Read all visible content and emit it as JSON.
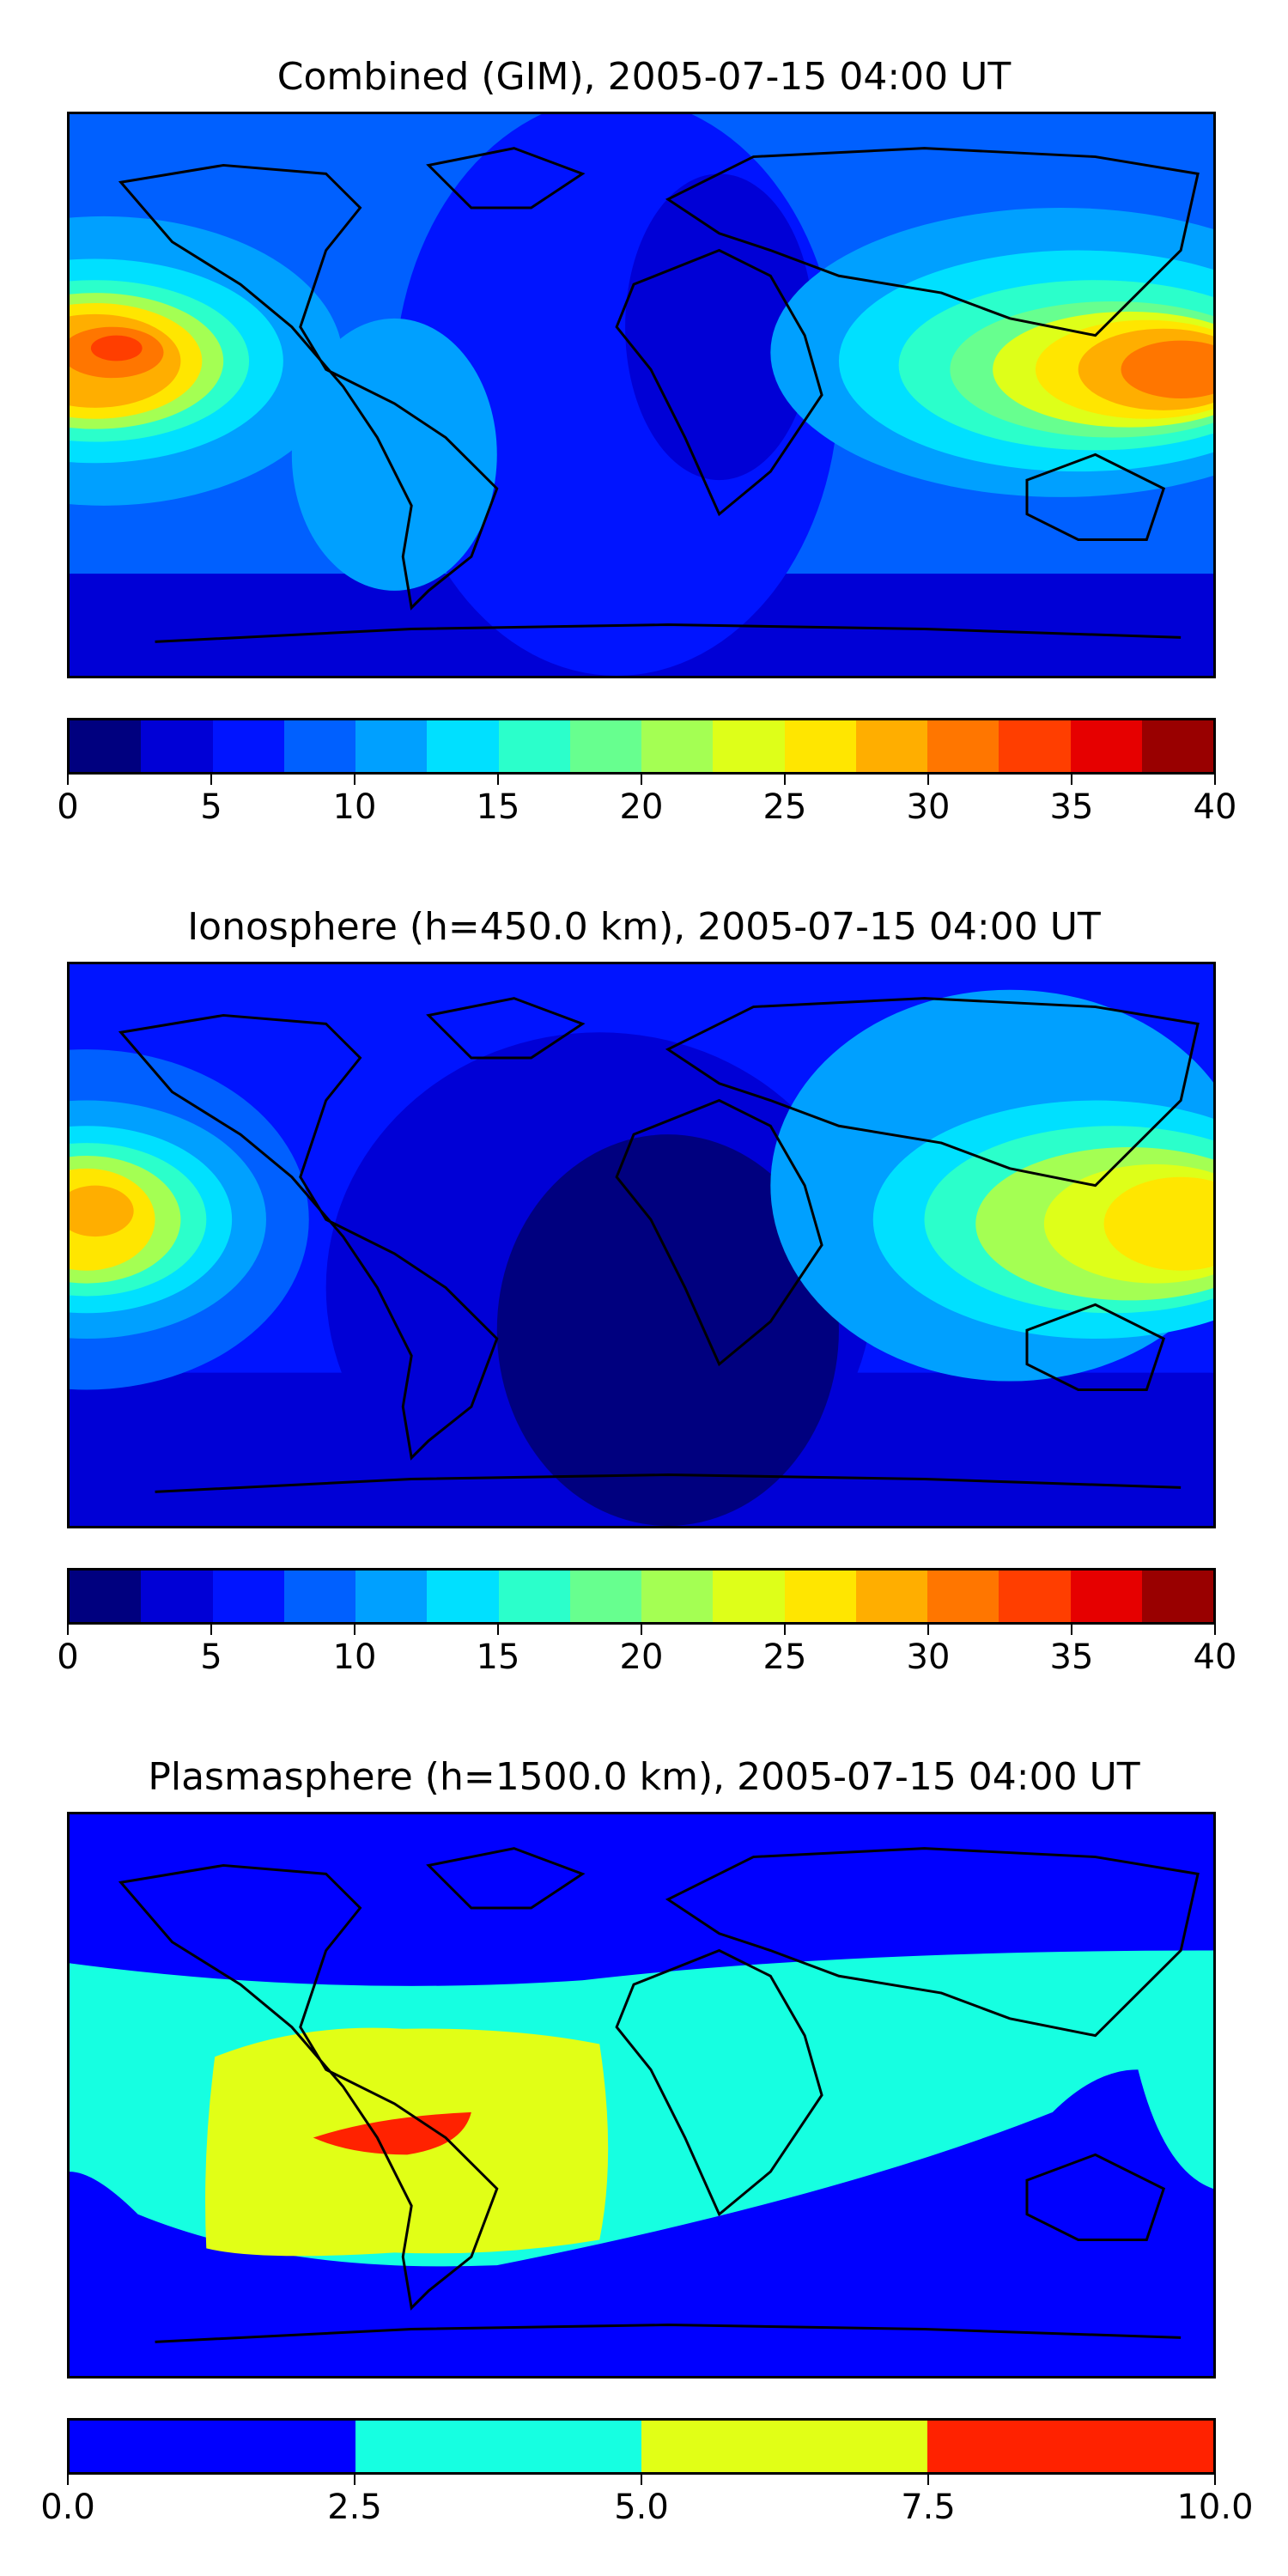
{
  "panels": [
    {
      "title": "Combined (GIM), 2005-07-15 04:00 UT",
      "colorbar": {
        "colors": [
          "#00007f",
          "#0000d6",
          "#0014ff",
          "#0060ff",
          "#00a0ff",
          "#00e0ff",
          "#2bffcb",
          "#67ff8f",
          "#a4ff53",
          "#deff19",
          "#ffe600",
          "#ffae00",
          "#ff7600",
          "#ff3e00",
          "#e60000",
          "#990000"
        ],
        "ticks": [
          "0",
          "5",
          "10",
          "15",
          "20",
          "25",
          "30",
          "35",
          "40"
        ],
        "min": 0,
        "max": 40
      }
    },
    {
      "title": "Ionosphere  (h=450.0 km), 2005-07-15 04:00 UT",
      "colorbar": {
        "colors": [
          "#00007f",
          "#0000d6",
          "#0014ff",
          "#0060ff",
          "#00a0ff",
          "#00e0ff",
          "#2bffcb",
          "#67ff8f",
          "#a4ff53",
          "#deff19",
          "#ffe600",
          "#ffae00",
          "#ff7600",
          "#ff3e00",
          "#e60000",
          "#990000"
        ],
        "ticks": [
          "0",
          "5",
          "10",
          "15",
          "20",
          "25",
          "30",
          "35",
          "40"
        ],
        "min": 0,
        "max": 40
      }
    },
    {
      "title": "Plasmasphere (h=1500.0 km), 2005-07-15 04:00 UT",
      "colorbar": {
        "colors": [
          "#0000ff",
          "#16ffe1",
          "#e1ff16",
          "#ff2200"
        ],
        "ticks": [
          "0.0",
          "2.5",
          "5.0",
          "7.5",
          "10.0"
        ],
        "min": 0,
        "max": 10
      }
    }
  ]
}
